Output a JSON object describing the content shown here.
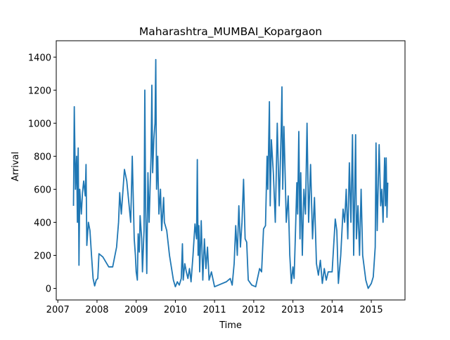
{
  "chart_data": {
    "type": "line",
    "title": "Maharashtra_MUMBAI_Kopargaon",
    "xlabel": "Time",
    "ylabel": "Arrival",
    "color": "#1f77b4",
    "x": [
      2007.4,
      2007.42,
      2007.45,
      2007.48,
      2007.5,
      2007.52,
      2007.54,
      2007.56,
      2007.6,
      2007.63,
      2007.66,
      2007.7,
      2007.72,
      2007.74,
      2007.78,
      2007.82,
      2007.86,
      2007.9,
      2007.94,
      2007.98,
      2008.02,
      2008.05,
      2008.15,
      2008.3,
      2008.4,
      2008.5,
      2008.55,
      2008.58,
      2008.62,
      2008.7,
      2008.76,
      2008.82,
      2008.86,
      2008.9,
      2008.92,
      2008.95,
      2008.98,
      2009.0,
      2009.03,
      2009.05,
      2009.08,
      2009.1,
      2009.14,
      2009.16,
      2009.2,
      2009.22,
      2009.24,
      2009.27,
      2009.3,
      2009.33,
      2009.36,
      2009.38,
      2009.4,
      2009.42,
      2009.45,
      2009.48,
      2009.5,
      2009.52,
      2009.55,
      2009.58,
      2009.62,
      2009.65,
      2009.7,
      2009.72,
      2009.78,
      2009.85,
      2009.95,
      2010.0,
      2010.05,
      2010.1,
      2010.15,
      2010.18,
      2010.2,
      2010.24,
      2010.28,
      2010.32,
      2010.36,
      2010.4,
      2010.45,
      2010.5,
      2010.54,
      2010.56,
      2010.58,
      2010.6,
      2010.62,
      2010.66,
      2010.7,
      2010.74,
      2010.78,
      2010.82,
      2010.86,
      2010.92,
      2011.0,
      2011.1,
      2011.3,
      2011.4,
      2011.45,
      2011.5,
      2011.54,
      2011.58,
      2011.62,
      2011.66,
      2011.7,
      2011.74,
      2011.78,
      2011.82,
      2011.86,
      2011.95,
      2012.05,
      2012.15,
      2012.2,
      2012.25,
      2012.3,
      2012.34,
      2012.36,
      2012.4,
      2012.42,
      2012.45,
      2012.5,
      2012.55,
      2012.6,
      2012.65,
      2012.7,
      2012.72,
      2012.74,
      2012.77,
      2012.8,
      2012.83,
      2012.88,
      2012.92,
      2012.96,
      2013.0,
      2013.03,
      2013.06,
      2013.1,
      2013.12,
      2013.15,
      2013.18,
      2013.2,
      2013.24,
      2013.28,
      2013.32,
      2013.36,
      2013.4,
      2013.45,
      2013.5,
      2013.55,
      2013.6,
      2013.65,
      2013.7,
      2013.75,
      2013.8,
      2013.85,
      2013.9,
      2014.0,
      2014.08,
      2014.12,
      2014.16,
      2014.22,
      2014.28,
      2014.32,
      2014.36,
      2014.4,
      2014.44,
      2014.48,
      2014.52,
      2014.55,
      2014.6,
      2014.62,
      2014.66,
      2014.7,
      2014.74,
      2014.78,
      2014.86,
      2014.92,
      2015.0,
      2015.05,
      2015.1,
      2015.12,
      2015.15,
      2015.2,
      2015.24,
      2015.27,
      2015.3,
      2015.34,
      2015.36,
      2015.38,
      2015.4,
      2015.42
    ],
    "values": [
      500,
      1100,
      600,
      800,
      400,
      850,
      140,
      600,
      450,
      580,
      650,
      560,
      750,
      260,
      400,
      350,
      200,
      60,
      15,
      50,
      60,
      210,
      190,
      130,
      130,
      250,
      400,
      580,
      450,
      720,
      650,
      500,
      400,
      800,
      600,
      300,
      200,
      100,
      50,
      330,
      220,
      440,
      300,
      100,
      350,
      1200,
      500,
      90,
      700,
      400,
      650,
      800,
      1230,
      700,
      900,
      1000,
      1385,
      600,
      800,
      450,
      600,
      350,
      550,
      400,
      350,
      200,
      50,
      10,
      40,
      20,
      60,
      270,
      50,
      150,
      100,
      60,
      120,
      40,
      200,
      390,
      300,
      780,
      200,
      380,
      100,
      410,
      50,
      300,
      120,
      250,
      50,
      100,
      10,
      20,
      40,
      60,
      20,
      150,
      380,
      200,
      500,
      250,
      400,
      660,
      300,
      280,
      50,
      20,
      10,
      120,
      100,
      360,
      380,
      800,
      600,
      1130,
      500,
      900,
      700,
      400,
      1000,
      500,
      950,
      1220,
      600,
      980,
      700,
      400,
      560,
      200,
      30,
      130,
      60,
      300,
      640,
      450,
      950,
      300,
      700,
      200,
      600,
      450,
      1000,
      400,
      750,
      300,
      550,
      150,
      80,
      170,
      30,
      120,
      50,
      100,
      100,
      420,
      350,
      30,
      200,
      480,
      400,
      600,
      300,
      760,
      400,
      930,
      200,
      930,
      300,
      500,
      200,
      600,
      200,
      50,
      0,
      30,
      70,
      250,
      880,
      350,
      870,
      500,
      600,
      400,
      790,
      500,
      790,
      430,
      640
    ],
    "xlim": [
      2006.96,
      2015.86
    ],
    "xticks": [
      2007,
      2008,
      2009,
      2010,
      2011,
      2012,
      2013,
      2014,
      2015
    ],
    "ylim": [
      -70,
      1499
    ],
    "yticks": [
      0,
      200,
      400,
      600,
      800,
      1000,
      1200,
      1400
    ]
  }
}
